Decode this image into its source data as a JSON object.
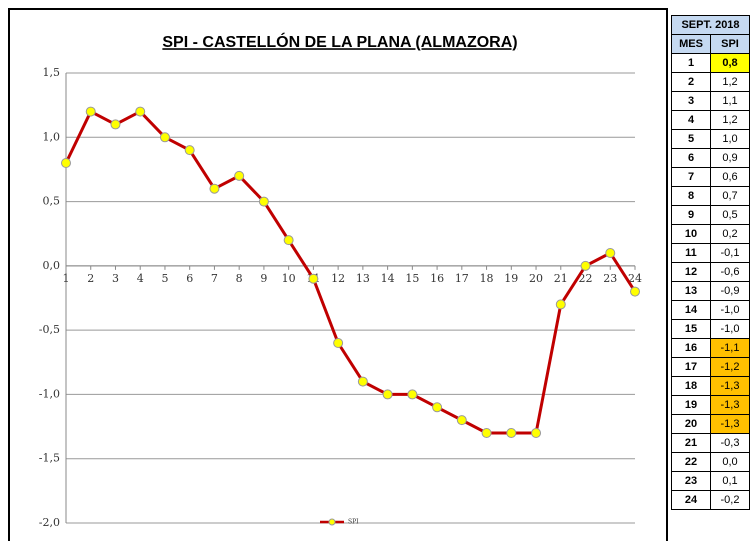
{
  "chart_data": {
    "type": "line",
    "title": "SPI - CASTELLÓN DE LA PLANA (ALMAZORA)",
    "x": [
      1,
      2,
      3,
      4,
      5,
      6,
      7,
      8,
      9,
      10,
      11,
      12,
      13,
      14,
      15,
      16,
      17,
      18,
      19,
      20,
      21,
      22,
      23,
      24
    ],
    "xlim": [
      1,
      24
    ],
    "xticks": [
      1,
      2,
      3,
      4,
      5,
      6,
      7,
      8,
      9,
      10,
      11,
      12,
      13,
      14,
      15,
      16,
      17,
      18,
      19,
      20,
      21,
      22,
      23,
      24
    ],
    "series": [
      {
        "name": "SPI",
        "color": "#c00000",
        "marker_color": "#ffff00",
        "values": [
          0.8,
          1.2,
          1.1,
          1.2,
          1.0,
          0.9,
          0.6,
          0.7,
          0.5,
          0.2,
          -0.1,
          -0.6,
          -0.9,
          -1.0,
          -1.0,
          -1.1,
          -1.2,
          -1.3,
          -1.3,
          -1.3,
          -0.3,
          0.0,
          0.1,
          -0.2
        ]
      }
    ],
    "ylim": [
      -2.0,
      1.5
    ],
    "yticks": [
      {
        "value": 1.5,
        "label": "1,5"
      },
      {
        "value": 1.0,
        "label": "1,0"
      },
      {
        "value": 0.5,
        "label": "0,5"
      },
      {
        "value": 0.0,
        "label": "0,0"
      },
      {
        "value": -0.5,
        "label": "-0,5"
      },
      {
        "value": -1.0,
        "label": "-1,0"
      },
      {
        "value": -1.5,
        "label": "-1,5"
      },
      {
        "value": -2.0,
        "label": "-2,0"
      }
    ],
    "grid": true
  },
  "table": {
    "title": "SEPT. 2018",
    "columns": [
      "MES",
      "SPI"
    ],
    "rows": [
      {
        "mes": "1",
        "spi": "0,8",
        "color": "#ffff00"
      },
      {
        "mes": "2",
        "spi": "1,2"
      },
      {
        "mes": "3",
        "spi": "1,1"
      },
      {
        "mes": "4",
        "spi": "1,2"
      },
      {
        "mes": "5",
        "spi": "1,0"
      },
      {
        "mes": "6",
        "spi": "0,9"
      },
      {
        "mes": "7",
        "spi": "0,6"
      },
      {
        "mes": "8",
        "spi": "0,7"
      },
      {
        "mes": "9",
        "spi": "0,5"
      },
      {
        "mes": "10",
        "spi": "0,2"
      },
      {
        "mes": "11",
        "spi": "-0,1"
      },
      {
        "mes": "12",
        "spi": "-0,6"
      },
      {
        "mes": "13",
        "spi": "-0,9"
      },
      {
        "mes": "14",
        "spi": "-1,0"
      },
      {
        "mes": "15",
        "spi": "-1,0"
      },
      {
        "mes": "16",
        "spi": "-1,1",
        "color": "#ffc000"
      },
      {
        "mes": "17",
        "spi": "-1,2",
        "color": "#ffc000"
      },
      {
        "mes": "18",
        "spi": "-1,3",
        "color": "#ffc000"
      },
      {
        "mes": "19",
        "spi": "-1,3",
        "color": "#ffc000"
      },
      {
        "mes": "20",
        "spi": "-1,3",
        "color": "#ffc000"
      },
      {
        "mes": "21",
        "spi": "-0,3"
      },
      {
        "mes": "22",
        "spi": "0,0"
      },
      {
        "mes": "23",
        "spi": "0,1"
      },
      {
        "mes": "24",
        "spi": "-0,2"
      }
    ]
  }
}
